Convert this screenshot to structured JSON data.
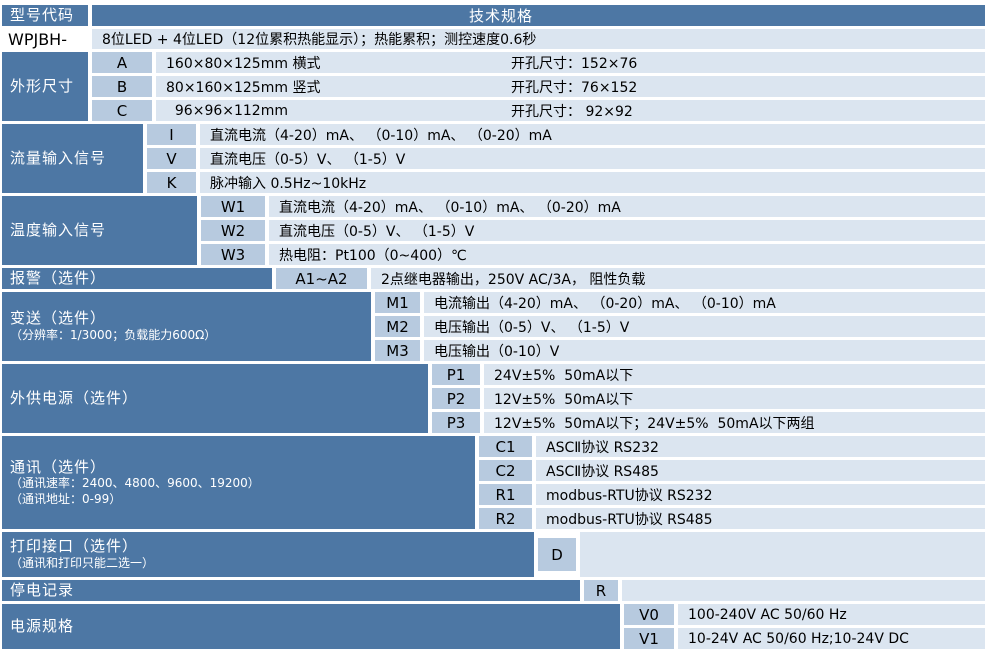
{
  "colors": {
    "label_bg": "#4d77a4",
    "code_cell_bg": "#b7cadf",
    "desc_cell_bg": "#dbe5f0",
    "label_text": "#ffffff",
    "body_text": "#000000",
    "gap": "#ffffff"
  },
  "header": {
    "model_col": "型号代码",
    "spec_col": "技术规格"
  },
  "model": {
    "code": "WPJBH-",
    "desc": "8位LED + 4位LED（12位累积热能显示）；热能累积；测控速度0.6秒"
  },
  "dimensions": {
    "label": "外形尺寸",
    "rows": [
      {
        "code": "A",
        "size": "160×80×125mm 横式",
        "hole": "开孔尺寸：152×76"
      },
      {
        "code": "B",
        "size": "80×160×125mm 竖式",
        "hole": "开孔尺寸：76×152"
      },
      {
        "code": "C",
        "size": "  96×96×112mm",
        "hole": "开孔尺寸： 92×92"
      }
    ]
  },
  "flow_input": {
    "label": "流量输入信号",
    "rows": [
      {
        "code": "I",
        "desc": "直流电流（4-20）mA、 （0-10）mA、 （0-20）mA"
      },
      {
        "code": "V",
        "desc": "直流电压（0-5）V、 （1-5）V"
      },
      {
        "code": "K",
        "desc": "脉冲输入 0.5Hz~10kHz"
      }
    ]
  },
  "temp_input": {
    "label": "温度输入信号",
    "rows": [
      {
        "code": "W1",
        "desc": "直流电流（4-20）mA、 （0-10）mA、 （0-20）mA"
      },
      {
        "code": "W2",
        "desc": "直流电压（0-5）V、 （1-5）V"
      },
      {
        "code": "W3",
        "desc": "热电阻：Pt100（0~400）℃"
      }
    ]
  },
  "alarm": {
    "label": "报警（选件）",
    "code": "A1~A2",
    "desc": "2点继电器输出，250V AC/3A， 阻性负载"
  },
  "transmit": {
    "label": "变送（选件）",
    "sublabel": "（分辨率：1/3000；负载能力600Ω）",
    "rows": [
      {
        "code": "M1",
        "desc": "电流输出（4-20）mA、 （0-20）mA、 （0-10）mA"
      },
      {
        "code": "M2",
        "desc": "电压输出（0-5）V、 （1-5）V"
      },
      {
        "code": "M3",
        "desc": "电压输出（0-10）V"
      }
    ]
  },
  "ext_power": {
    "label": "外供电源（选件）",
    "rows": [
      {
        "code": "P1",
        "desc": "24V±5%  50mA以下"
      },
      {
        "code": "P2",
        "desc": "12V±5%  50mA以下"
      },
      {
        "code": "P3",
        "desc": "12V±5%  50mA以下；24V±5%  50mA以下两组"
      }
    ]
  },
  "comm": {
    "label": "通讯（选件）",
    "sublabel_rate": "（通讯速率：2400、4800、9600、19200）",
    "sublabel_addr": "（通讯地址：0-99）",
    "rows": [
      {
        "code": "C1",
        "desc": "ASCⅡ协议 RS232"
      },
      {
        "code": "C2",
        "desc": "ASCⅡ协议 RS485"
      },
      {
        "code": "R1",
        "desc": "modbus-RTU协议 RS232"
      },
      {
        "code": "R2",
        "desc": "modbus-RTU协议 RS485"
      }
    ]
  },
  "print": {
    "label": "打印接口（选件）",
    "sublabel": "（通讯和打印只能二选一）",
    "code": "D"
  },
  "power_fail": {
    "label": "停电记录",
    "code": "R"
  },
  "power_spec": {
    "label": "电源规格",
    "rows": [
      {
        "code": "V0",
        "desc": "100-240V AC 50/60 Hz"
      },
      {
        "code": "V1",
        "desc": "10-24V AC 50/60 Hz;10-24V DC"
      }
    ]
  }
}
